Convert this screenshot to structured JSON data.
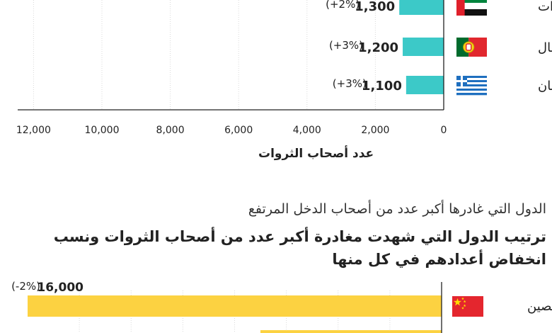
{
  "chart_data": [
    {
      "type": "bar",
      "orientation": "horizontal",
      "direction": "right-to-left",
      "categories": [
        "الإمارات",
        "البرتغال",
        "اليونان"
      ],
      "values": [
        1300,
        1200,
        1100
      ],
      "value_labels": [
        "1,300",
        "1,200",
        "1,100"
      ],
      "change_labels": [
        "(+2%)",
        "(+3%)",
        "(+3%)"
      ],
      "flag_icons": [
        "uae-flag-icon",
        "portugal-flag-icon",
        "greece-flag-icon"
      ],
      "bar_color": "#3cc9c8",
      "xlim": [
        0,
        13000
      ],
      "xticks": [
        12000,
        10000,
        8000,
        6000,
        4000,
        2000,
        0
      ],
      "xtick_labels": [
        "12,000",
        "10,000",
        "8,000",
        "6,000",
        "4,000",
        "2,000",
        "0"
      ],
      "xlabel": "عدد أصحاب الثروات",
      "grid": true
    },
    {
      "type": "bar",
      "orientation": "horizontal",
      "direction": "right-to-left",
      "subtitle": "الدول التي غادرها أكبر عدد من أصحاب الدخل المرتفع",
      "title": "ترتيب الدول التي شهدت مغادرة أكبر عدد من أصحاب الثروات ونسب انخفاض أعدادهم في كل منها",
      "categories": [
        "الصين"
      ],
      "values": [
        16000
      ],
      "value_labels": [
        "16,000"
      ],
      "change_labels": [
        "(-2%)"
      ],
      "flag_icons": [
        "china-flag-icon"
      ],
      "bar_color": "#fcd241",
      "xlim": [
        0,
        16000
      ],
      "grid": true
    }
  ]
}
